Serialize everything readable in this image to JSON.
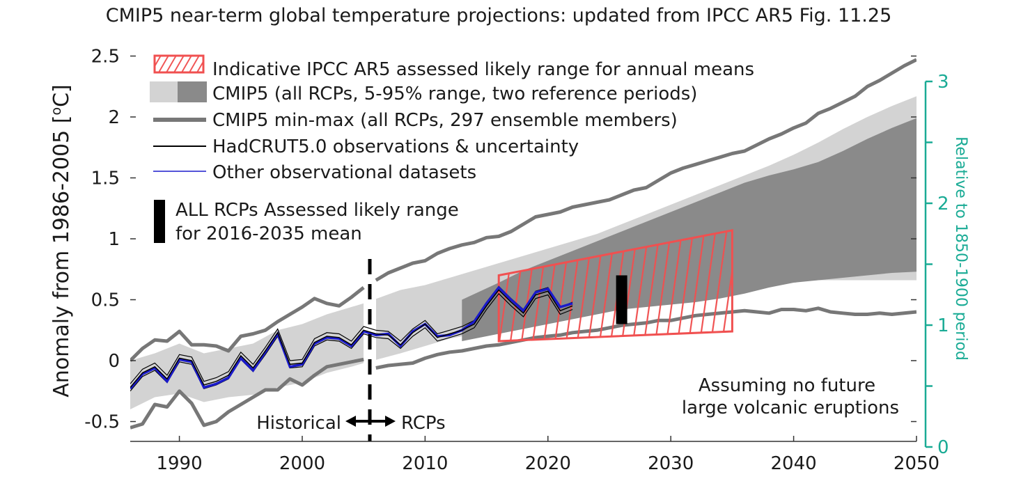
{
  "chart_data": {
    "type": "line",
    "title": "CMIP5 near-term global temperature projections: updated from IPCC AR5 Fig. 11.25",
    "ylabel": "Anomaly from 1986-2005  [",
    "ylabel_unit": "o",
    "ylabel_tail": "C]",
    "y2label": "Relative to 1850-1900 period",
    "xlim": [
      1986,
      2050
    ],
    "ylim": [
      -0.65,
      2.6
    ],
    "y2lim": [
      0,
      3
    ],
    "x_ticks": [
      "1990",
      "2000",
      "2010",
      "2020",
      "2030",
      "2040",
      "2050"
    ],
    "y_ticks": [
      "-0.5",
      "0",
      "0.5",
      "1",
      "1.5",
      "2",
      "2.5"
    ],
    "y2_ticks": [
      "0",
      "1",
      "2",
      "3"
    ],
    "colors": {
      "light_band": "#d3d3d3",
      "dark_band": "#8a8a8a",
      "minmax": "#777777",
      "obs": "#000000",
      "other_obs": "#1a1acc",
      "ipcc_range": "#f05050",
      "right_axis": "#1aab95"
    },
    "legend": [
      "Indicative IPCC AR5 assessed likely range for annual means",
      "CMIP5 (all RCPs, 5-95% range, two reference periods)",
      "CMIP5 min-max (all RCPs, 297 ensemble members)",
      "HadCRUT5.0 observations & uncertainty",
      "Other observational datasets"
    ],
    "assessed_bar_label_1": "ALL RCPs Assessed likely range",
    "assessed_bar_label_2": "for 2016-2035 mean",
    "historical_label": "Historical",
    "rcps_label": "RCPs",
    "note_line1": "Assuming no future",
    "note_line2": "large volcanic eruptions",
    "observations": {
      "x": [
        1986,
        1987,
        1988,
        1989,
        1990,
        1991,
        1992,
        1993,
        1994,
        1995,
        1996,
        1997,
        1998,
        1999,
        2000,
        2001,
        2002,
        2003,
        2004,
        2005,
        2006,
        2007,
        2008,
        2009,
        2010,
        2011,
        2012,
        2013,
        2014,
        2015,
        2016,
        2017,
        2018,
        2019,
        2020,
        2021,
        2022
      ],
      "y": [
        -0.22,
        -0.1,
        -0.05,
        -0.15,
        0.02,
        0.0,
        -0.2,
        -0.17,
        -0.12,
        0.04,
        -0.06,
        0.08,
        0.23,
        -0.03,
        -0.02,
        0.15,
        0.2,
        0.19,
        0.13,
        0.25,
        0.22,
        0.21,
        0.13,
        0.23,
        0.3,
        0.19,
        0.22,
        0.25,
        0.3,
        0.45,
        0.58,
        0.48,
        0.39,
        0.54,
        0.57,
        0.41,
        0.45
      ]
    },
    "other_obs_y": [
      -0.23,
      -0.11,
      -0.06,
      -0.17,
      0.01,
      -0.01,
      -0.22,
      -0.19,
      -0.14,
      0.02,
      -0.08,
      0.07,
      0.22,
      -0.05,
      -0.03,
      0.14,
      0.19,
      0.18,
      0.12,
      0.24,
      0.21,
      0.22,
      0.12,
      0.24,
      0.3,
      0.2,
      0.21,
      0.25,
      0.32,
      0.47,
      0.6,
      0.5,
      0.41,
      0.56,
      0.59,
      0.44,
      0.47
    ],
    "minmax_upper": {
      "x": [
        1986,
        1987,
        1988,
        1989,
        1990,
        1991,
        1992,
        1993,
        1994,
        1995,
        1996,
        1997,
        1998,
        1999,
        2000,
        2001,
        2002,
        2003,
        2004,
        2005,
        2006,
        2007,
        2008,
        2009,
        2010,
        2011,
        2012,
        2013,
        2014,
        2015,
        2016,
        2017,
        2018,
        2019,
        2020,
        2021,
        2022,
        2023,
        2024,
        2025,
        2026,
        2027,
        2028,
        2029,
        2030,
        2031,
        2032,
        2033,
        2034,
        2035,
        2036,
        2037,
        2038,
        2039,
        2040,
        2041,
        2042,
        2043,
        2044,
        2045,
        2046,
        2047,
        2048,
        2049,
        2050
      ],
      "y": [
        0.0,
        0.1,
        0.17,
        0.16,
        0.24,
        0.13,
        0.13,
        0.12,
        0.08,
        0.2,
        0.22,
        0.25,
        0.32,
        0.38,
        0.44,
        0.51,
        0.47,
        0.45,
        0.52,
        0.6,
        0.66,
        0.72,
        0.76,
        0.8,
        0.82,
        0.88,
        0.92,
        0.95,
        0.97,
        1.01,
        1.02,
        1.06,
        1.12,
        1.18,
        1.2,
        1.22,
        1.26,
        1.28,
        1.3,
        1.32,
        1.36,
        1.4,
        1.42,
        1.48,
        1.54,
        1.58,
        1.61,
        1.64,
        1.67,
        1.7,
        1.72,
        1.77,
        1.82,
        1.86,
        1.91,
        1.95,
        2.03,
        2.07,
        2.12,
        2.17,
        2.25,
        2.3,
        2.36,
        2.42,
        2.47
      ]
    },
    "minmax_lower": {
      "x": [
        1986,
        1987,
        1988,
        1989,
        1990,
        1991,
        1992,
        1993,
        1994,
        1995,
        1996,
        1997,
        1998,
        1999,
        2000,
        2001,
        2002,
        2003,
        2004,
        2005,
        2006,
        2007,
        2008,
        2009,
        2010,
        2011,
        2012,
        2013,
        2014,
        2015,
        2016,
        2017,
        2018,
        2019,
        2020,
        2021,
        2022,
        2023,
        2024,
        2025,
        2026,
        2027,
        2028,
        2029,
        2030,
        2031,
        2032,
        2033,
        2034,
        2035,
        2036,
        2037,
        2038,
        2039,
        2040,
        2041,
        2042,
        2043,
        2044,
        2045,
        2046,
        2047,
        2048,
        2049,
        2050
      ],
      "y": [
        -0.55,
        -0.52,
        -0.36,
        -0.38,
        -0.25,
        -0.35,
        -0.53,
        -0.5,
        -0.42,
        -0.36,
        -0.3,
        -0.24,
        -0.24,
        -0.15,
        -0.2,
        -0.12,
        -0.05,
        -0.03,
        -0.01,
        0.01,
        -0.06,
        -0.04,
        -0.03,
        -0.02,
        0.02,
        0.05,
        0.07,
        0.08,
        0.1,
        0.12,
        0.13,
        0.15,
        0.17,
        0.19,
        0.2,
        0.21,
        0.23,
        0.24,
        0.25,
        0.27,
        0.29,
        0.3,
        0.31,
        0.33,
        0.33,
        0.35,
        0.37,
        0.38,
        0.39,
        0.4,
        0.41,
        0.4,
        0.39,
        0.42,
        0.42,
        0.41,
        0.43,
        0.4,
        0.39,
        0.38,
        0.38,
        0.39,
        0.38,
        0.39,
        0.4
      ]
    },
    "band_light": {
      "x": [
        1986,
        1988,
        1990,
        1992,
        1994,
        1996,
        1998,
        2000,
        2002,
        2004,
        2005,
        2008,
        2010,
        2012,
        2014,
        2016,
        2018,
        2020,
        2022,
        2024,
        2026,
        2028,
        2030,
        2032,
        2034,
        2036,
        2038,
        2040,
        2042,
        2044,
        2046,
        2048,
        2050
      ],
      "upper": [
        0.0,
        0.06,
        0.14,
        0.06,
        0.1,
        0.14,
        0.25,
        0.3,
        0.38,
        0.44,
        0.47,
        0.58,
        0.62,
        0.68,
        0.74,
        0.8,
        0.86,
        0.92,
        0.98,
        1.04,
        1.12,
        1.2,
        1.28,
        1.36,
        1.44,
        1.52,
        1.6,
        1.69,
        1.79,
        1.9,
        2.0,
        2.09,
        2.17
      ],
      "lower": [
        -0.4,
        -0.3,
        -0.27,
        -0.34,
        -0.3,
        -0.28,
        -0.22,
        -0.18,
        -0.1,
        -0.05,
        -0.02,
        0.06,
        0.12,
        0.18,
        0.22,
        0.26,
        0.3,
        0.34,
        0.38,
        0.42,
        0.46,
        0.5,
        0.54,
        0.58,
        0.61,
        0.63,
        0.64,
        0.65,
        0.66,
        0.66,
        0.66,
        0.66,
        0.66
      ]
    },
    "band_dark": {
      "x": [
        2013,
        2016,
        2018,
        2020,
        2022,
        2024,
        2026,
        2028,
        2030,
        2032,
        2034,
        2036,
        2038,
        2040,
        2042,
        2044,
        2046,
        2048,
        2050
      ],
      "upper": [
        0.5,
        0.64,
        0.74,
        0.82,
        0.9,
        0.98,
        1.06,
        1.14,
        1.22,
        1.3,
        1.38,
        1.46,
        1.52,
        1.57,
        1.63,
        1.72,
        1.82,
        1.91,
        1.99
      ],
      "lower": [
        0.16,
        0.22,
        0.26,
        0.3,
        0.34,
        0.38,
        0.42,
        0.44,
        0.46,
        0.48,
        0.51,
        0.55,
        0.6,
        0.64,
        0.66,
        0.68,
        0.7,
        0.72,
        0.73
      ]
    },
    "ipcc_range": {
      "x": [
        2016,
        2035
      ],
      "upper": [
        0.7,
        1.07
      ],
      "lower": [
        0.16,
        0.24
      ]
    },
    "assessed_bar": {
      "x": 2026,
      "low": 0.3,
      "high": 0.7
    },
    "divider_x": 2005.5
  }
}
